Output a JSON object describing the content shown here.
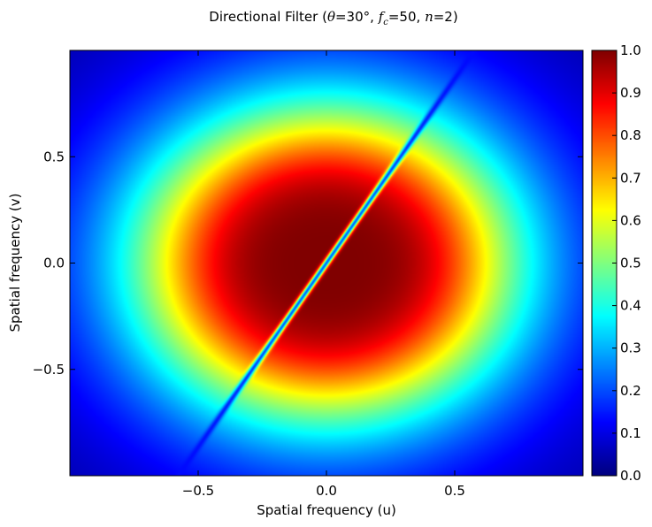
{
  "chart_data": {
    "type": "heatmap",
    "title_prefix": "Directional Filter (",
    "title_theta": "θ",
    "title_theta_eq": "=30°, ",
    "title_f": "f",
    "title_c": "c",
    "title_fc_eq": "=50, ",
    "title_n": "n",
    "title_n_eq": "=2)",
    "xlabel": "Spatial frequency (u)",
    "ylabel": "Spatial frequency (v)",
    "xlim": [
      -1.0,
      1.0
    ],
    "ylim": [
      -1.0,
      1.0
    ],
    "x_ticks": [
      -0.5,
      0.0,
      0.5
    ],
    "x_tick_labels": [
      "−0.5",
      "0.0",
      "0.5"
    ],
    "y_ticks": [
      -0.5,
      0.0,
      0.5
    ],
    "y_tick_labels": [
      "−0.5",
      "0.0",
      "0.5"
    ],
    "colormap": "jet",
    "colorbar_range": [
      0.0,
      1.0
    ],
    "colorbar_ticks": [
      0.0,
      0.1,
      0.2,
      0.3,
      0.4,
      0.5,
      0.6,
      0.7,
      0.8,
      0.9,
      1.0
    ],
    "colorbar_tick_labels": [
      "0.0",
      "0.1",
      "0.2",
      "0.3",
      "0.4",
      "0.5",
      "0.6",
      "0.7",
      "0.8",
      "0.9",
      "1.0"
    ],
    "filter_angle_deg": 30,
    "filter_cutoff": 50,
    "filter_order": 2,
    "grid": false
  }
}
